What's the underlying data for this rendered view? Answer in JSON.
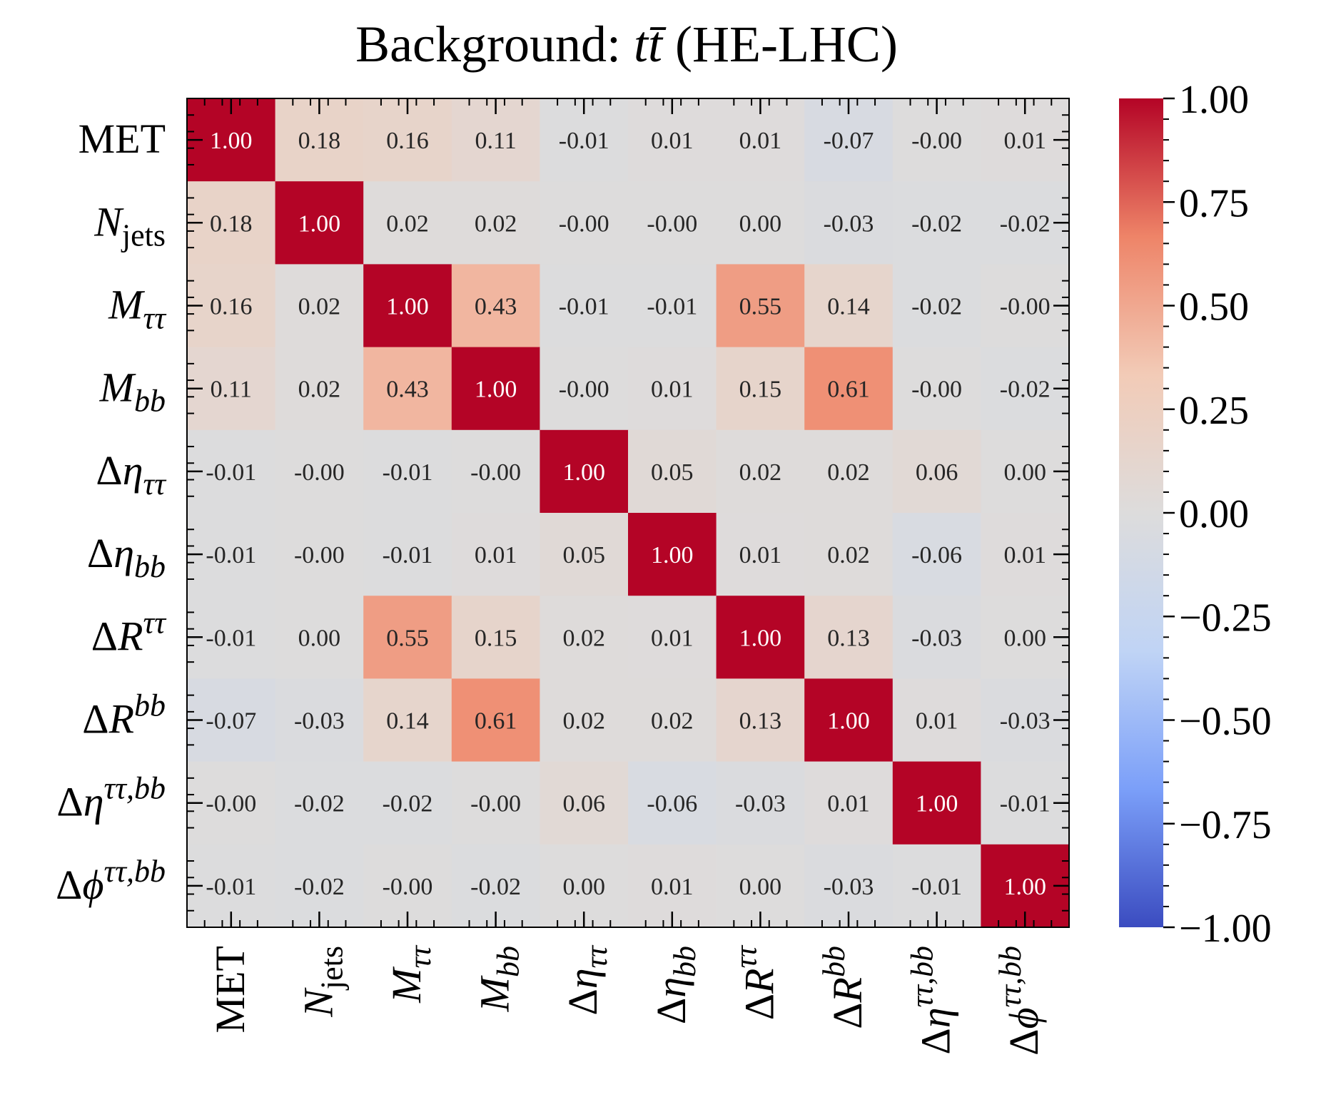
{
  "chart_data": {
    "type": "heatmap",
    "title": "Background: tt̄ (HE-LHC)",
    "title_parts": [
      "Background: ",
      "t",
      "t̄",
      " (HE-LHC)"
    ],
    "labels": [
      {
        "main": "MET",
        "sub": "",
        "sup": ""
      },
      {
        "main": "N",
        "sub": "jets",
        "sup": ""
      },
      {
        "main": "M",
        "sub": "ττ",
        "sup": ""
      },
      {
        "main": "M",
        "sub": "bb",
        "sup": ""
      },
      {
        "main": "Δη",
        "sub": "ττ",
        "sup": ""
      },
      {
        "main": "Δη",
        "sub": "bb",
        "sup": ""
      },
      {
        "main": "ΔR",
        "sub": "",
        "sup": "ττ"
      },
      {
        "main": "ΔR",
        "sub": "",
        "sup": "bb"
      },
      {
        "main": "Δη",
        "sub": "",
        "sup": "ττ,bb"
      },
      {
        "main": "Δϕ",
        "sub": "",
        "sup": "ττ,bb"
      }
    ],
    "matrix": [
      [
        1.0,
        0.18,
        0.16,
        0.11,
        -0.01,
        0.01,
        0.01,
        -0.07,
        -0.0,
        0.01
      ],
      [
        0.18,
        1.0,
        0.02,
        0.02,
        -0.0,
        -0.0,
        0.0,
        -0.03,
        -0.02,
        -0.02
      ],
      [
        0.16,
        0.02,
        1.0,
        0.43,
        -0.01,
        -0.01,
        0.55,
        0.14,
        -0.02,
        -0.0
      ],
      [
        0.11,
        0.02,
        0.43,
        1.0,
        -0.0,
        0.01,
        0.15,
        0.61,
        -0.0,
        -0.02
      ],
      [
        -0.01,
        -0.0,
        -0.01,
        -0.0,
        1.0,
        0.05,
        0.02,
        0.02,
        0.06,
        0.0
      ],
      [
        -0.01,
        -0.0,
        -0.01,
        0.01,
        0.05,
        1.0,
        0.01,
        0.02,
        -0.06,
        0.01
      ],
      [
        -0.01,
        0.0,
        0.55,
        0.15,
        0.02,
        0.01,
        1.0,
        0.13,
        -0.03,
        0.0
      ],
      [
        -0.07,
        -0.03,
        0.14,
        0.61,
        0.02,
        0.02,
        0.13,
        1.0,
        0.01,
        -0.03
      ],
      [
        -0.0,
        -0.02,
        -0.02,
        -0.0,
        0.06,
        -0.06,
        -0.03,
        0.01,
        1.0,
        -0.01
      ],
      [
        -0.01,
        -0.02,
        -0.0,
        -0.02,
        0.0,
        0.01,
        0.0,
        -0.03,
        -0.01,
        1.0
      ]
    ],
    "cell_labels": [
      [
        "1.00",
        "0.18",
        "0.16",
        "0.11",
        "-0.01",
        "0.01",
        "0.01",
        "-0.07",
        "-0.00",
        "0.01"
      ],
      [
        "0.18",
        "1.00",
        "0.02",
        "0.02",
        "-0.00",
        "-0.00",
        "0.00",
        "-0.03",
        "-0.02",
        "-0.02"
      ],
      [
        "0.16",
        "0.02",
        "1.00",
        "0.43",
        "-0.01",
        "-0.01",
        "0.55",
        "0.14",
        "-0.02",
        "-0.00"
      ],
      [
        "0.11",
        "0.02",
        "0.43",
        "1.00",
        "-0.00",
        "0.01",
        "0.15",
        "0.61",
        "-0.00",
        "-0.02"
      ],
      [
        "-0.01",
        "-0.00",
        "-0.01",
        "-0.00",
        "1.00",
        "0.05",
        "0.02",
        "0.02",
        "0.06",
        "0.00"
      ],
      [
        "-0.01",
        "-0.00",
        "-0.01",
        "0.01",
        "0.05",
        "1.00",
        "0.01",
        "0.02",
        "-0.06",
        "0.01"
      ],
      [
        "-0.01",
        "0.00",
        "0.55",
        "0.15",
        "0.02",
        "0.01",
        "1.00",
        "0.13",
        "-0.03",
        "0.00"
      ],
      [
        "-0.07",
        "-0.03",
        "0.14",
        "0.61",
        "0.02",
        "0.02",
        "0.13",
        "1.00",
        "0.01",
        "-0.03"
      ],
      [
        "-0.00",
        "-0.02",
        "-0.02",
        "-0.00",
        "0.06",
        "-0.06",
        "-0.03",
        "0.01",
        "1.00",
        "-0.01"
      ],
      [
        "-0.01",
        "-0.02",
        "-0.00",
        "-0.02",
        "0.00",
        "0.01",
        "0.00",
        "-0.03",
        "-0.01",
        "1.00"
      ]
    ],
    "colormap": "coolwarm",
    "colormap_stops": [
      "#3b4cc0",
      "#7b9ff9",
      "#c0d4f5",
      "#dddcdc",
      "#f2cbb7",
      "#ee8468",
      "#b40426"
    ],
    "vmin": -1.0,
    "vmax": 1.0,
    "colorbar_ticks": [
      1.0,
      0.75,
      0.5,
      0.25,
      0.0,
      -0.25,
      -0.5,
      -0.75,
      -1.0
    ],
    "colorbar_tick_labels": [
      "1.00",
      "0.75",
      "0.50",
      "0.25",
      "0.00",
      "−0.25",
      "−0.50",
      "−0.75",
      "−1.00"
    ],
    "grid": false,
    "legend": "colorbar-right"
  }
}
